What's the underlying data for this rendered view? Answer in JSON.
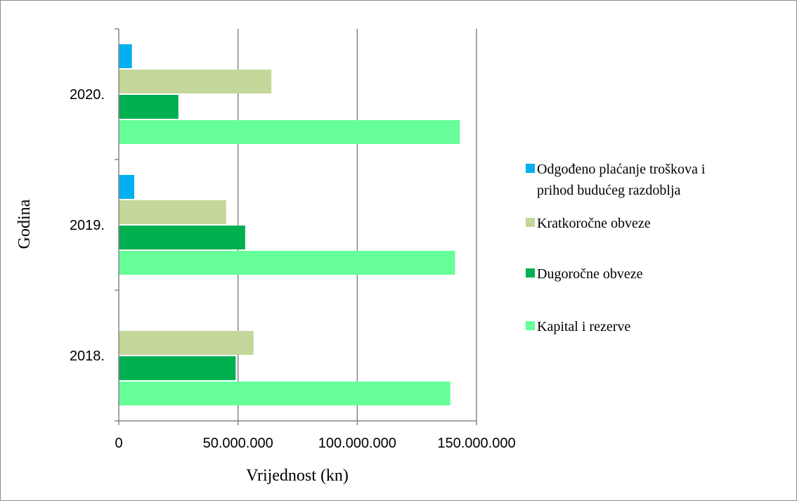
{
  "chart_data": {
    "type": "bar",
    "orientation": "horizontal",
    "xlabel": "Vrijednost (kn)",
    "ylabel": "Godina",
    "xlim": [
      0,
      150000000
    ],
    "x_ticks": [
      0,
      50000000,
      100000000,
      150000000
    ],
    "x_tick_labels": [
      "0",
      "50.000.000",
      "100.000.000",
      "150.000.000"
    ],
    "categories": [
      "2018.",
      "2019.",
      "2020."
    ],
    "grid": "vertical",
    "legend_position": "right",
    "series": [
      {
        "name": "Kapital i rezerve",
        "color": "#66ff99",
        "values": [
          139000000,
          141000000,
          143000000
        ]
      },
      {
        "name": "Dugoročne obveze",
        "color": "#00b050",
        "values": [
          49000000,
          53000000,
          25000000
        ]
      },
      {
        "name": "Kratkoročne obveze",
        "color": "#c4d79b",
        "values": [
          56500000,
          45000000,
          64000000
        ]
      },
      {
        "name": "Odgođeno plaćanje troškova i prihod budućeg razdoblja",
        "legend_lines": [
          "Odgođeno plaćanje troškova i",
          "prihod budućeg razdoblja"
        ],
        "color": "#00b0f0",
        "values": [
          0,
          6500000,
          5500000
        ]
      }
    ]
  }
}
